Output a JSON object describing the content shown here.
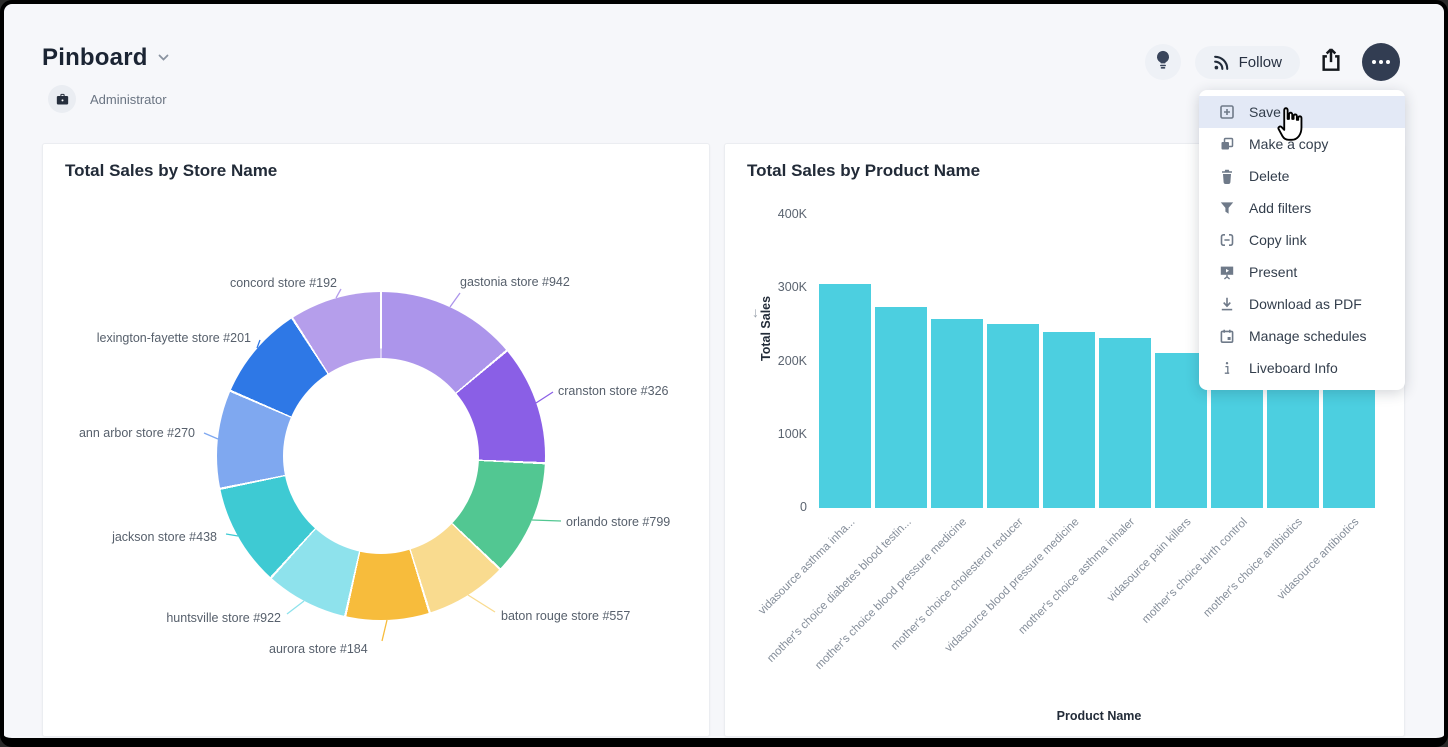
{
  "header": {
    "title": "Pinboard",
    "author": "Administrator",
    "follow_label": "Follow"
  },
  "menu": {
    "items": [
      {
        "label": "Save",
        "icon": "plus-square",
        "active": true
      },
      {
        "label": "Make a copy",
        "icon": "copy",
        "active": false
      },
      {
        "label": "Delete",
        "icon": "trash",
        "active": false
      },
      {
        "label": "Add filters",
        "icon": "filter",
        "active": false
      },
      {
        "label": "Copy link",
        "icon": "link",
        "active": false
      },
      {
        "label": "Present",
        "icon": "present",
        "active": false
      },
      {
        "label": "Download as PDF",
        "icon": "download",
        "active": false
      },
      {
        "label": "Manage schedules",
        "icon": "calendar",
        "active": false
      },
      {
        "label": "Liveboard Info",
        "icon": "info",
        "active": false
      }
    ]
  },
  "colors": {
    "page_bg": "#F6F7FA",
    "card_bg": "#FFFFFF",
    "menu_highlight": "#E3E9F6",
    "dark_button": "#323D52",
    "bar_color": "#4CCFE0"
  },
  "chart_data": [
    {
      "type": "pie",
      "donut": true,
      "title": "Total Sales by Store Name",
      "legend_position": "none",
      "categories": [
        "gastonia store #942",
        "cranston store #326",
        "orlando store #799",
        "baton rouge store #557",
        "aurora store #184",
        "huntsville store #922",
        "jackson store #438",
        "ann arbor store #270",
        "lexington-fayette store #201",
        "concord store #192"
      ],
      "values_pct": [
        13.9,
        11.8,
        11.4,
        8.1,
        8.3,
        8.2,
        10.1,
        9.7,
        9.4,
        9.1
      ],
      "colors": [
        "#AC95EB",
        "#8A5FE6",
        "#52C792",
        "#F9DB8F",
        "#F7BC3C",
        "#8EE2EC",
        "#3ECAD3",
        "#7FA8F0",
        "#2E78E6",
        "#B59EEB"
      ]
    },
    {
      "type": "bar",
      "title": "Total Sales by Product Name",
      "xlabel": "Product Name",
      "ylabel": "Total Sales",
      "sort": "descending",
      "ylim": [
        0,
        400000
      ],
      "yticks": [
        "0",
        "100K",
        "200K",
        "300K",
        "400K"
      ],
      "grid": false,
      "categories": [
        "vidasource asthma inha...",
        "mother's choice diabetes blood testin...",
        "mother's choice blood pressure medicine",
        "mother's choice cholesterol reducer",
        "vidasource blood pressure medicine",
        "mother's choice asthma inhaler",
        "vidasource pain killers",
        "mother's choice birth control",
        "mother's choice antibiotics",
        "vidasource antibiotics"
      ],
      "values": [
        306000,
        274000,
        258000,
        251000,
        240000,
        232000,
        212000,
        205000,
        196000,
        188000
      ],
      "bar_color": "#4CCFE0"
    }
  ]
}
